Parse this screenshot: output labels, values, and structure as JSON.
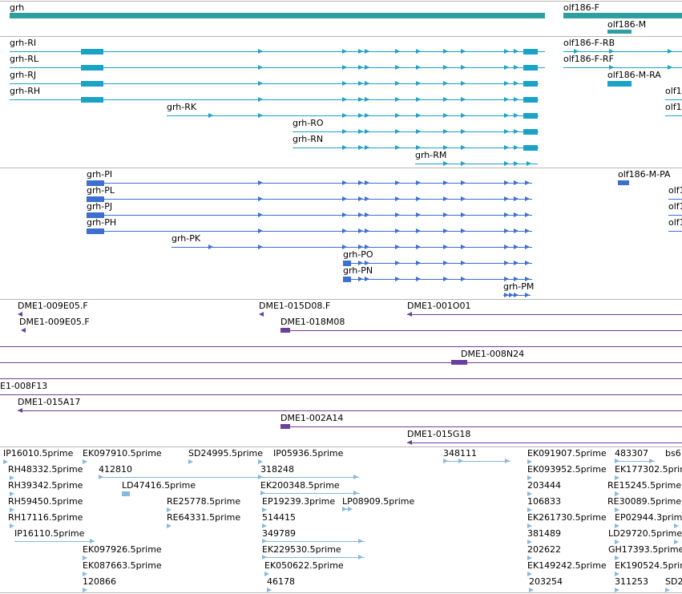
{
  "tracks": {
    "genes": [
      "grh",
      "olf186-F",
      "olf186-M"
    ],
    "transcripts": [
      "grh-RI",
      "grh-RL",
      "grh-RJ",
      "grh-RH",
      "grh-RK",
      "grh-RO",
      "grh-RN",
      "grh-RM",
      "olf186-F-RB",
      "olf186-F-RF",
      "olf186-M-RA",
      "olf1",
      "olf1"
    ],
    "proteins": [
      "grh-PI",
      "grh-PL",
      "grh-PJ",
      "grh-PH",
      "grh-PK",
      "grh-PO",
      "grh-PN",
      "grh-PM",
      "olf186-M-PA",
      "olf1",
      "olf1",
      "olf1"
    ],
    "clones": [
      "DME1-009E05.F",
      "DME1-009E05.F",
      "DME1-015D08.F",
      "DME1-001O01",
      "DME1-018M08",
      "DME1-008N24",
      "E1-008F13",
      "DME1-015A17",
      "DME1-002A14",
      "DME1-015G18"
    ],
    "ests": [
      "IP16010.5prime",
      "EK097910.5prime",
      "SD24995.5prime",
      "IP05936.5prime",
      "348111",
      "EK091907.5prime",
      "483307",
      "bs6",
      "RH48332.5prime",
      "412810",
      "318248",
      "EK093952.5prime",
      "EK177302.5prime",
      "RH39342.5prime",
      "LD47416.5prime",
      "EK200348.5prime",
      "203444",
      "RE15245.5prime",
      "RH59450.5prime",
      "RE25778.5prime",
      "EP19239.3prime",
      "LP08909.5prime",
      "106833",
      "RE30089.5prime",
      "RH17116.5prime",
      "RE64331.5prime",
      "514415",
      "EK261730.5prime",
      "EP02944.3prime",
      "IP16110.5prime",
      "349789",
      "381489",
      "LD29720.5prime",
      "EK097926.5prime",
      "EK229530.5prime",
      "202622",
      "GH17393.5prime",
      "EK087663.5prime",
      "EK050622.5prime",
      "EK149242.5prime",
      "EK190524.5prime",
      "120866",
      "46178",
      "203254",
      "311253",
      "SD2"
    ]
  },
  "colors": {
    "gene": "#2f9e9e",
    "transcript": "#1ba3c6",
    "protein": "#3c6fcf",
    "clone": "#6a3fa0",
    "est": "#87b8df",
    "separator": "#b7b7b7"
  }
}
